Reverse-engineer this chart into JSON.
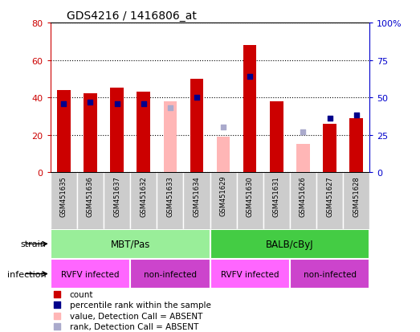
{
  "title": "GDS4216 / 1416806_at",
  "samples": [
    "GSM451635",
    "GSM451636",
    "GSM451637",
    "GSM451632",
    "GSM451633",
    "GSM451634",
    "GSM451629",
    "GSM451630",
    "GSM451631",
    "GSM451626",
    "GSM451627",
    "GSM451628"
  ],
  "count_values": [
    44,
    42,
    45,
    43,
    null,
    50,
    null,
    68,
    38,
    null,
    26,
    29
  ],
  "count_absent": [
    null,
    null,
    null,
    null,
    38,
    null,
    19,
    null,
    null,
    15,
    null,
    null
  ],
  "percentile_values": [
    46,
    47,
    46,
    46,
    null,
    50,
    null,
    64,
    null,
    null,
    36,
    38
  ],
  "percentile_absent": [
    null,
    null,
    null,
    null,
    43,
    null,
    30,
    null,
    null,
    27,
    null,
    null
  ],
  "ylim_left": [
    0,
    80
  ],
  "ylim_right": [
    0,
    100
  ],
  "yticks_left": [
    0,
    20,
    40,
    60,
    80
  ],
  "yticks_right": [
    0,
    25,
    50,
    75,
    100
  ],
  "ytick_labels_left": [
    "0",
    "20",
    "40",
    "60",
    "80"
  ],
  "ytick_labels_right": [
    "0",
    "25",
    "50",
    "75",
    "100%"
  ],
  "bar_color_present": "#cc0000",
  "bar_color_absent": "#ffb6b6",
  "dot_color_present": "#00008b",
  "dot_color_absent": "#aaaacc",
  "strain_groups": [
    {
      "label": "MBT/Pas",
      "start": 0,
      "end": 6,
      "color": "#99ee99"
    },
    {
      "label": "BALB/cByJ",
      "start": 6,
      "end": 12,
      "color": "#44cc44"
    }
  ],
  "infection_groups": [
    {
      "label": "RVFV infected",
      "start": 0,
      "end": 3,
      "color": "#ff66ff"
    },
    {
      "label": "non-infected",
      "start": 3,
      "end": 6,
      "color": "#cc44cc"
    },
    {
      "label": "RVFV infected",
      "start": 6,
      "end": 9,
      "color": "#ff66ff"
    },
    {
      "label": "non-infected",
      "start": 9,
      "end": 12,
      "color": "#cc44cc"
    }
  ],
  "axis_left_color": "#cc0000",
  "axis_right_color": "#0000cc",
  "sample_box_color": "#cccccc",
  "bar_width": 0.5,
  "dot_size": 25,
  "legend_items": [
    {
      "color": "#cc0000",
      "label": "count"
    },
    {
      "color": "#00008b",
      "label": "percentile rank within the sample"
    },
    {
      "color": "#ffb6b6",
      "label": "value, Detection Call = ABSENT"
    },
    {
      "color": "#aaaacc",
      "label": "rank, Detection Call = ABSENT"
    }
  ]
}
